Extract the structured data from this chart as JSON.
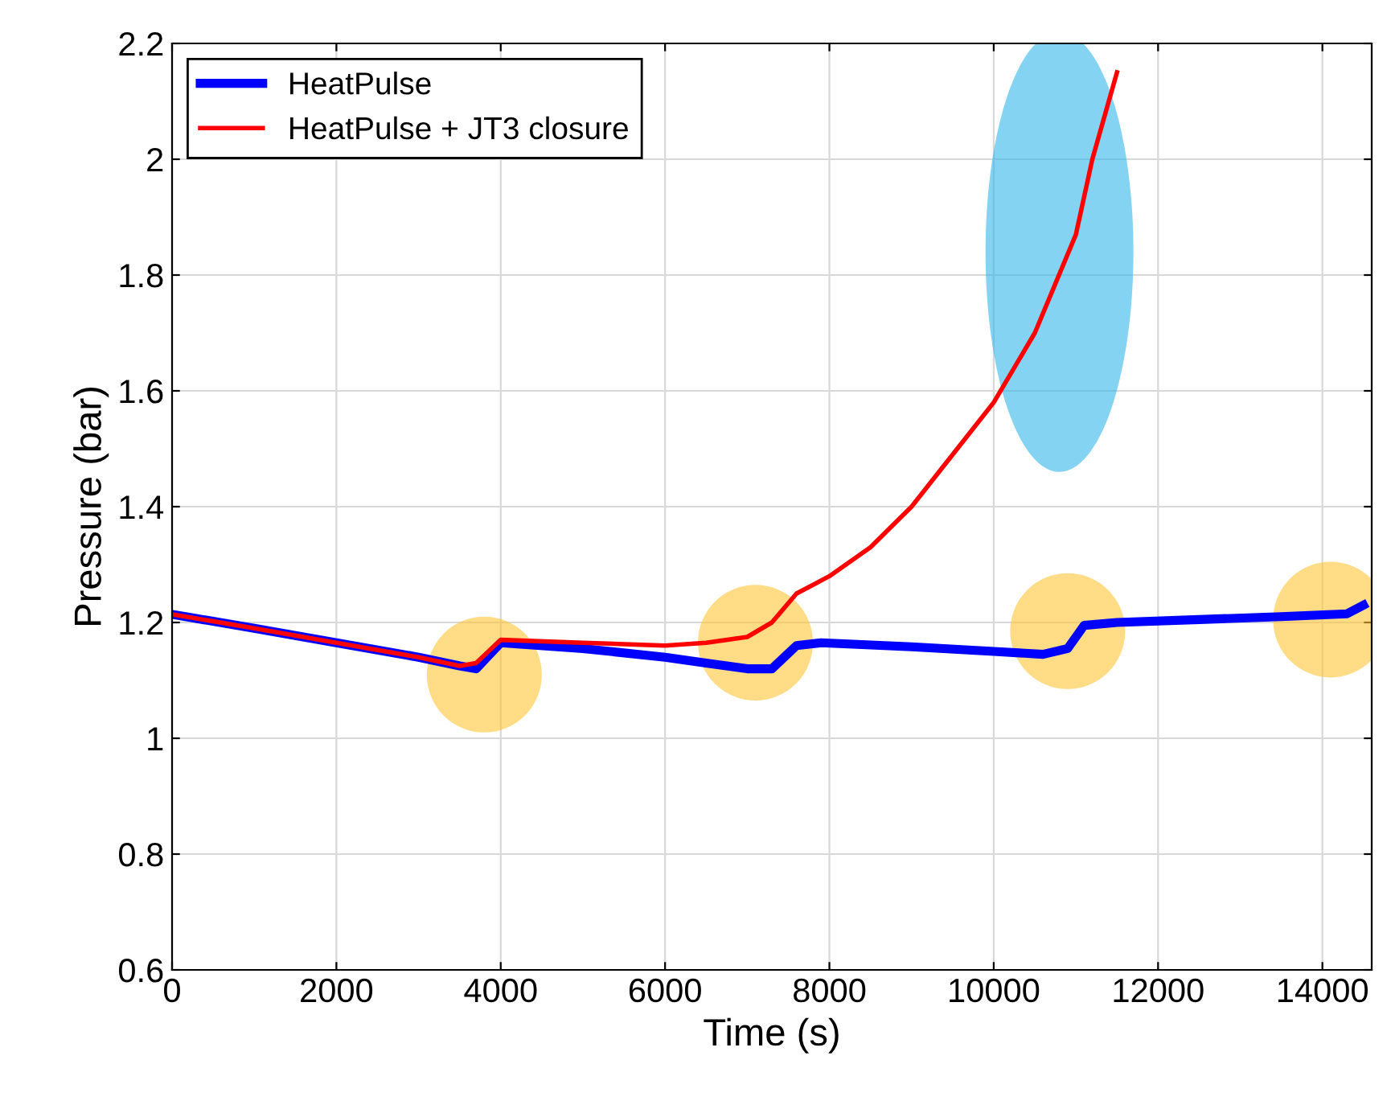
{
  "chart_data": {
    "type": "line",
    "xlabel": "Time (s)",
    "ylabel": "Pressure (bar)",
    "xlim": [
      0,
      14600
    ],
    "xticks": [
      0,
      2000,
      4000,
      6000,
      8000,
      10000,
      12000,
      14000
    ],
    "ylim": [
      0.6,
      2.2
    ],
    "yticks": [
      0.6,
      0.8,
      1,
      1.2,
      1.4,
      1.6,
      1.8,
      2,
      2.2
    ],
    "grid": true,
    "legend": "top left",
    "line_style": "solid",
    "marker": "none",
    "series": [
      {
        "name": "HeatPulse",
        "color": "#0000ff",
        "x": [
          0,
          1000,
          2000,
          3000,
          3500,
          3700,
          4000,
          5000,
          6000,
          6500,
          7000,
          7300,
          7600,
          7900,
          9000,
          10000,
          10600,
          10900,
          11100,
          11500,
          12500,
          13500,
          14300,
          14500
        ],
        "values": [
          1.214,
          1.19,
          1.165,
          1.14,
          1.125,
          1.12,
          1.165,
          1.155,
          1.14,
          1.13,
          1.12,
          1.12,
          1.16,
          1.165,
          1.158,
          1.15,
          1.145,
          1.155,
          1.195,
          1.2,
          1.205,
          1.21,
          1.215,
          1.23
        ]
      },
      {
        "name": "HeatPulse + JT3 closure",
        "color": "#ff0000",
        "x": [
          0,
          1000,
          2000,
          3000,
          3500,
          3700,
          4000,
          5000,
          6000,
          6500,
          7000,
          7300,
          7600,
          8000,
          8500,
          9000,
          9500,
          10000,
          10500,
          11000,
          11200,
          11500
        ],
        "values": [
          1.214,
          1.19,
          1.165,
          1.14,
          1.125,
          1.13,
          1.17,
          1.165,
          1.16,
          1.165,
          1.175,
          1.2,
          1.25,
          1.28,
          1.33,
          1.4,
          1.49,
          1.58,
          1.7,
          1.87,
          2.0,
          2.15
        ]
      }
    ]
  }
}
